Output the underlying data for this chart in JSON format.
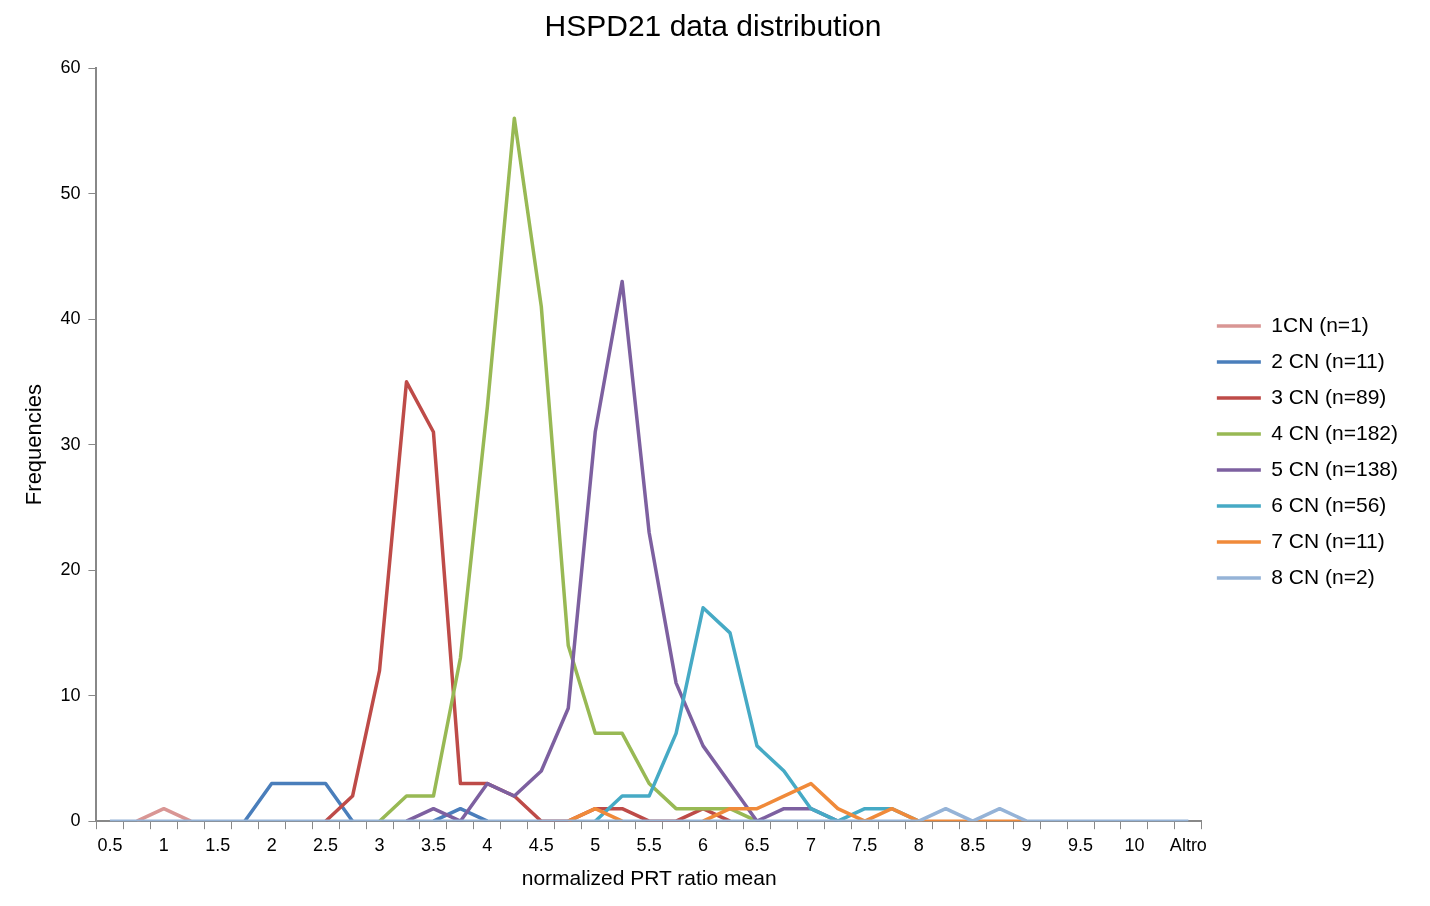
{
  "chart_data": {
    "type": "line",
    "title": "HSPD21 data distribution",
    "xlabel": "normalized PRT ratio mean",
    "ylabel": "Frequencies",
    "categories": [
      "0.5",
      null,
      "1",
      null,
      "1.5",
      null,
      "2",
      null,
      "2.5",
      null,
      "3",
      null,
      "3.5",
      null,
      "4",
      null,
      "4.5",
      null,
      "5",
      null,
      "5.5",
      null,
      "6",
      null,
      "6.5",
      null,
      "7",
      null,
      "7.5",
      null,
      "8",
      null,
      "8.5",
      null,
      "9",
      null,
      "9.5",
      null,
      "10",
      null,
      "Altro"
    ],
    "ylim": [
      0,
      60
    ],
    "yticks": [
      0,
      10,
      20,
      30,
      40,
      50,
      60
    ],
    "grid": false,
    "legend": "right",
    "marker": "none",
    "line_style": "solid",
    "series": [
      {
        "name": "1CN (n=1)",
        "color": "#d99694",
        "values": [
          null,
          0,
          1,
          0,
          null,
          null,
          null,
          null,
          null,
          null,
          null,
          null,
          null,
          null,
          null,
          null,
          null,
          null,
          null,
          null,
          null,
          null,
          null,
          null,
          null,
          null,
          null,
          null,
          null,
          null,
          null,
          null,
          null,
          null,
          null,
          null,
          null,
          null,
          null,
          null,
          null
        ]
      },
      {
        "name": "2 CN (n=11)",
        "color": "#4a7ebb",
        "values": [
          null,
          null,
          null,
          null,
          null,
          0,
          3,
          3,
          3,
          0,
          null,
          null,
          0,
          1,
          0,
          null,
          null,
          null,
          null,
          null,
          null,
          null,
          null,
          null,
          null,
          null,
          null,
          null,
          null,
          null,
          null,
          null,
          null,
          null,
          null,
          null,
          null,
          null,
          null,
          null,
          null
        ]
      },
      {
        "name": "3 CN (n=89)",
        "color": "#be4b48",
        "values": [
          null,
          null,
          null,
          null,
          null,
          null,
          null,
          null,
          0,
          2,
          12,
          35,
          31,
          3,
          3,
          2,
          0,
          0,
          1,
          1,
          0,
          0,
          1,
          0,
          null,
          null,
          null,
          null,
          null,
          null,
          null,
          null,
          null,
          null,
          null,
          null,
          null,
          null,
          null,
          null,
          null
        ]
      },
      {
        "name": "4 CN (n=182)",
        "color": "#98b954",
        "values": [
          null,
          null,
          null,
          null,
          null,
          null,
          null,
          null,
          null,
          null,
          0,
          2,
          2,
          13,
          33,
          56,
          41,
          14,
          7,
          7,
          3,
          1,
          1,
          1,
          0,
          null,
          null,
          null,
          null,
          null,
          null,
          null,
          null,
          null,
          null,
          null,
          null,
          null,
          null,
          null,
          null
        ]
      },
      {
        "name": "5 CN (n=138)",
        "color": "#7d60a0",
        "values": [
          null,
          null,
          null,
          null,
          null,
          null,
          null,
          null,
          null,
          null,
          null,
          0,
          1,
          0,
          3,
          2,
          4,
          9,
          31,
          43,
          23,
          11,
          6,
          3,
          0,
          1,
          1,
          0,
          null,
          null,
          null,
          null,
          null,
          null,
          null,
          null,
          null,
          null,
          null,
          null,
          null
        ]
      },
      {
        "name": "6 CN (n=56)",
        "color": "#46aac5",
        "values": [
          null,
          null,
          null,
          null,
          null,
          null,
          null,
          null,
          null,
          null,
          null,
          null,
          null,
          null,
          null,
          null,
          null,
          null,
          0,
          2,
          2,
          7,
          17,
          15,
          6,
          4,
          1,
          0,
          1,
          1,
          0,
          null,
          null,
          null,
          null,
          null,
          null,
          null,
          null,
          null,
          null
        ]
      },
      {
        "name": "7 CN (n=11)",
        "color": "#f08a3a",
        "values": [
          null,
          null,
          null,
          null,
          null,
          null,
          null,
          null,
          null,
          null,
          null,
          null,
          null,
          null,
          null,
          null,
          null,
          0,
          1,
          0,
          null,
          null,
          0,
          1,
          1,
          2,
          3,
          1,
          0,
          1,
          0,
          0,
          0,
          0,
          0,
          null,
          null,
          null,
          null,
          null,
          null
        ]
      },
      {
        "name": "8 CN (n=2)",
        "color": "#95b3d7",
        "values": [
          0,
          0,
          0,
          0,
          0,
          0,
          0,
          0,
          0,
          0,
          0,
          0,
          0,
          0,
          0,
          0,
          0,
          0,
          0,
          0,
          0,
          0,
          0,
          0,
          0,
          0,
          0,
          0,
          0,
          0,
          0,
          1,
          0,
          1,
          0,
          0,
          0,
          0,
          0,
          0,
          0
        ]
      }
    ]
  }
}
